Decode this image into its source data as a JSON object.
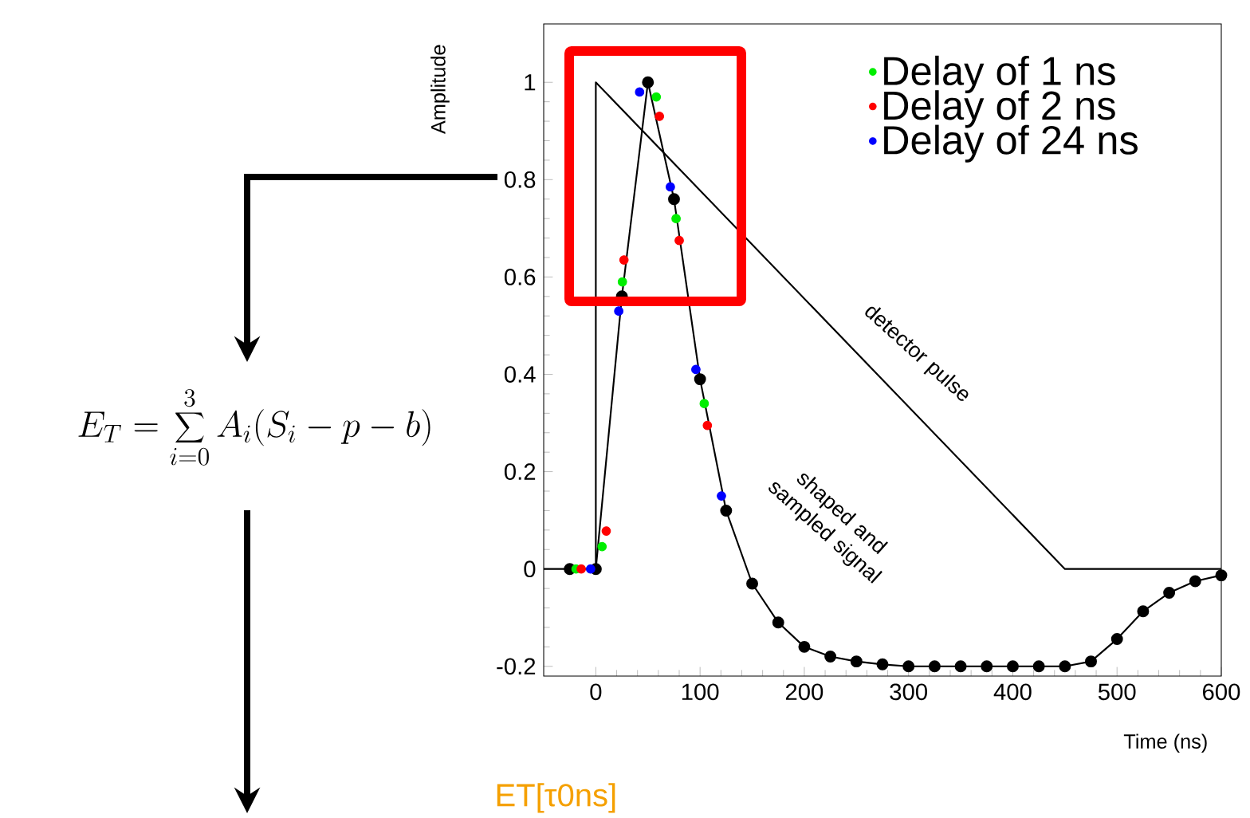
{
  "chart_data": {
    "type": "line",
    "xlabel": "Time (ns)",
    "ylabel": "Amplitude",
    "xlim": [
      -50,
      600
    ],
    "ylim": [
      -0.22,
      1.12
    ],
    "xticks": [
      0,
      100,
      200,
      300,
      400,
      500,
      600
    ],
    "yticks": [
      -0.2,
      0,
      0.2,
      0.4,
      0.6,
      0.8,
      1
    ],
    "legend": "top right",
    "series": [
      {
        "color": "#000000",
        "marker": "none",
        "x": [
          -50,
          0,
          0,
          450,
          600
        ],
        "values": [
          0,
          0,
          1,
          0,
          0
        ]
      },
      {
        "color": "#000000",
        "marker": "circle",
        "x": [
          -25,
          0,
          25,
          50,
          75,
          100,
          125,
          150,
          175,
          200,
          225,
          250,
          275,
          300,
          325,
          350,
          375,
          400,
          425,
          450,
          475,
          500,
          525,
          550,
          575,
          600
        ],
        "values": [
          0,
          0,
          0.56,
          1.0,
          0.76,
          0.39,
          0.12,
          -0.03,
          -0.11,
          -0.16,
          -0.18,
          -0.19,
          -0.196,
          -0.2,
          -0.2,
          -0.2,
          -0.2,
          -0.2,
          -0.2,
          -0.2,
          -0.19,
          -0.144,
          -0.087,
          -0.049,
          -0.025,
          -0.013
        ]
      },
      {
        "type": "scatter",
        "name": "Delay of 1 ns",
        "color": "#00ee00",
        "marker": "circle",
        "x": [
          -19,
          6,
          25.5,
          58,
          77,
          104
        ],
        "values": [
          0,
          0.046,
          0.59,
          0.97,
          0.72,
          0.34
        ]
      },
      {
        "type": "scatter",
        "name": "Delay of 2 ns",
        "color": "#ff0000",
        "marker": "circle",
        "x": [
          -14,
          10,
          27,
          61,
          80,
          107
        ],
        "values": [
          0,
          0.078,
          0.635,
          0.93,
          0.675,
          0.295
        ]
      },
      {
        "type": "scatter",
        "name": "Delay of 24 ns",
        "color": "#0000ff",
        "marker": "circle",
        "x": [
          -5,
          22,
          42,
          71.5,
          96,
          120.5
        ],
        "values": [
          0,
          0.53,
          0.98,
          0.785,
          0.41,
          0.15
        ]
      }
    ],
    "annotations": [
      "detector pulse",
      "shaped and sampled signal",
      "E_T = \\sum_{i=0}^{3} A_i(S_i - p - b)",
      "ET[τ0ns]"
    ]
  }
}
